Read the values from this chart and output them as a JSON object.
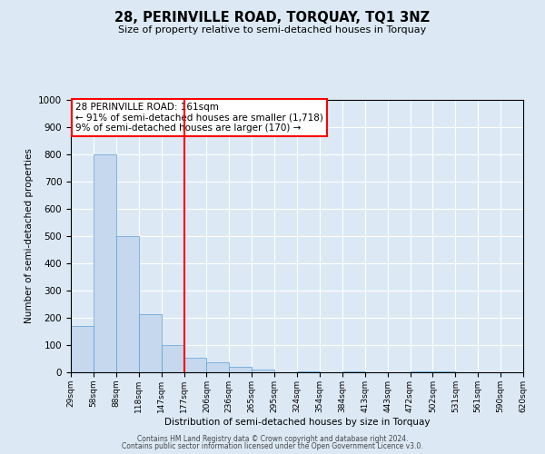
{
  "title": "28, PERINVILLE ROAD, TORQUAY, TQ1 3NZ",
  "subtitle": "Size of property relative to semi-detached houses in Torquay",
  "xlabel": "Distribution of semi-detached houses by size in Torquay",
  "ylabel": "Number of semi-detached properties",
  "bin_labels": [
    "29sqm",
    "58sqm",
    "88sqm",
    "118sqm",
    "147sqm",
    "177sqm",
    "206sqm",
    "236sqm",
    "265sqm",
    "295sqm",
    "324sqm",
    "354sqm",
    "384sqm",
    "413sqm",
    "443sqm",
    "472sqm",
    "502sqm",
    "531sqm",
    "561sqm",
    "590sqm",
    "620sqm"
  ],
  "bar_heights": [
    170,
    800,
    500,
    215,
    100,
    55,
    38,
    20,
    10,
    0,
    5,
    0,
    5,
    0,
    0,
    5,
    5,
    0,
    0,
    0,
    0
  ],
  "bar_color": "#c5d8ed",
  "bar_edge_color": "#5a9fd4",
  "vline_color": "red",
  "annotation_text_line1": "28 PERINVILLE ROAD: 161sqm",
  "annotation_text_line2": "← 91% of semi-detached houses are smaller (1,718)",
  "annotation_text_line3": "9% of semi-detached houses are larger (170) →",
  "ylim": [
    0,
    1000
  ],
  "yticks": [
    0,
    100,
    200,
    300,
    400,
    500,
    600,
    700,
    800,
    900,
    1000
  ],
  "background_color": "#dce9f5",
  "plot_background": "#dce9f5",
  "grid_color": "#ffffff",
  "footer_line1": "Contains HM Land Registry data © Crown copyright and database right 2024.",
  "footer_line2": "Contains public sector information licensed under the Open Government Licence v3.0."
}
